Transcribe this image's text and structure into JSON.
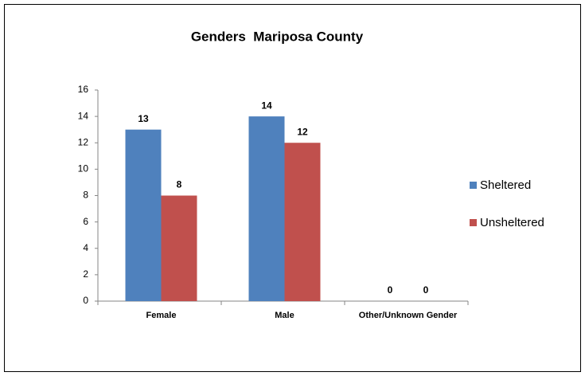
{
  "chart_data": {
    "type": "bar",
    "title": "Genders  Mariposa County",
    "categories": [
      "Female",
      "Male",
      "Other/Unknown Gender"
    ],
    "series": [
      {
        "name": "Sheltered",
        "color": "#4f81bd",
        "values": [
          13,
          14,
          0
        ]
      },
      {
        "name": "Unsheltered",
        "color": "#c0504d",
        "values": [
          8,
          12,
          0
        ]
      }
    ],
    "ylim": [
      0,
      16
    ],
    "yticks": [
      0,
      2,
      4,
      6,
      8,
      10,
      12,
      14,
      16
    ],
    "grid": false,
    "legend": "right"
  }
}
